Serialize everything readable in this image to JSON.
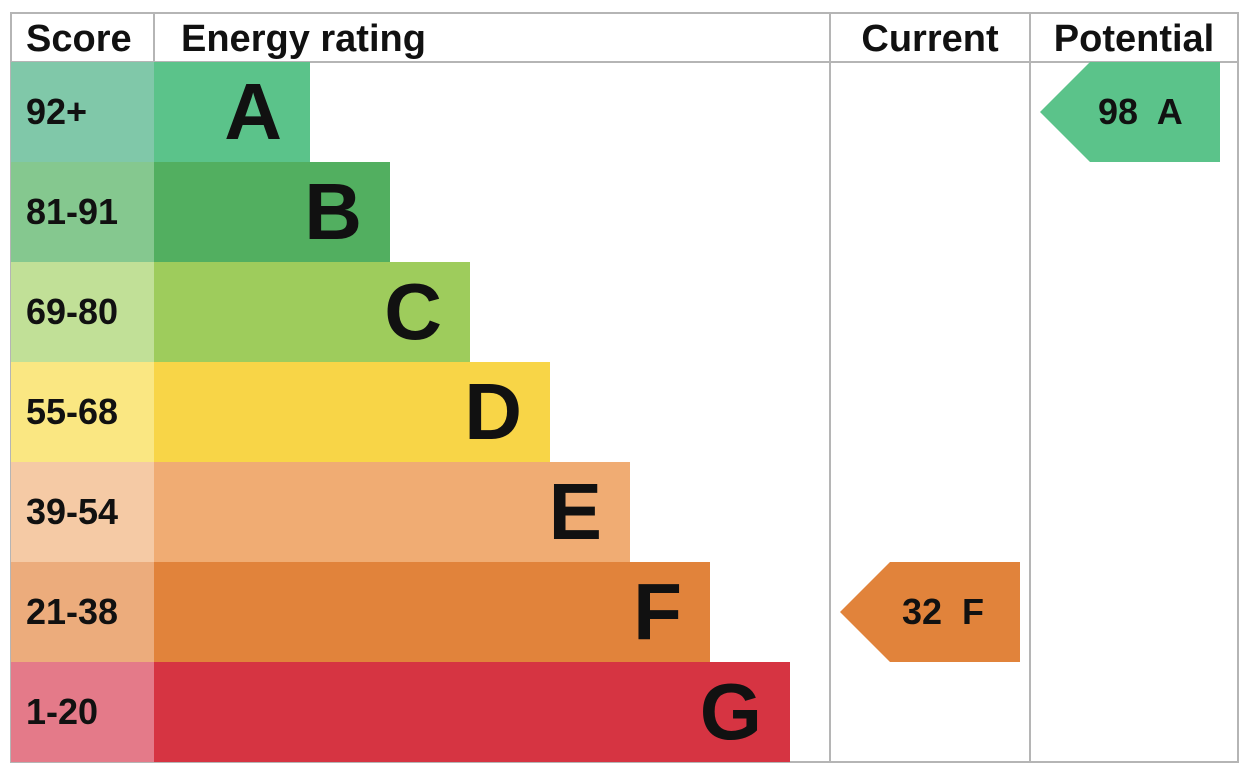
{
  "chart_data": {
    "type": "energy-rating",
    "headers": {
      "score": "Score",
      "rating": "Energy rating",
      "current": "Current",
      "potential": "Potential"
    },
    "bands": [
      {
        "score": "92+",
        "letter": "A",
        "color": "#5bc38a",
        "score_color": "#80c8a9"
      },
      {
        "score": "81-91",
        "letter": "B",
        "color": "#52af60",
        "score_color": "#85c88f"
      },
      {
        "score": "69-80",
        "letter": "C",
        "color": "#9ecc5c",
        "score_color": "#c1e097"
      },
      {
        "score": "55-68",
        "letter": "D",
        "color": "#f8d547",
        "score_color": "#fae782"
      },
      {
        "score": "39-54",
        "letter": "E",
        "color": "#f0ac73",
        "score_color": "#f5caa5"
      },
      {
        "score": "21-38",
        "letter": "F",
        "color": "#e1833b",
        "score_color": "#ecac7c"
      },
      {
        "score": "1-20",
        "letter": "G",
        "color": "#d63442",
        "score_color": "#e47a89"
      }
    ],
    "current": {
      "value": 32,
      "letter": "F",
      "label": "32  F",
      "color": "#e1833b"
    },
    "potential": {
      "value": 98,
      "letter": "A",
      "label": "98  A",
      "color": "#5bc38a"
    }
  }
}
